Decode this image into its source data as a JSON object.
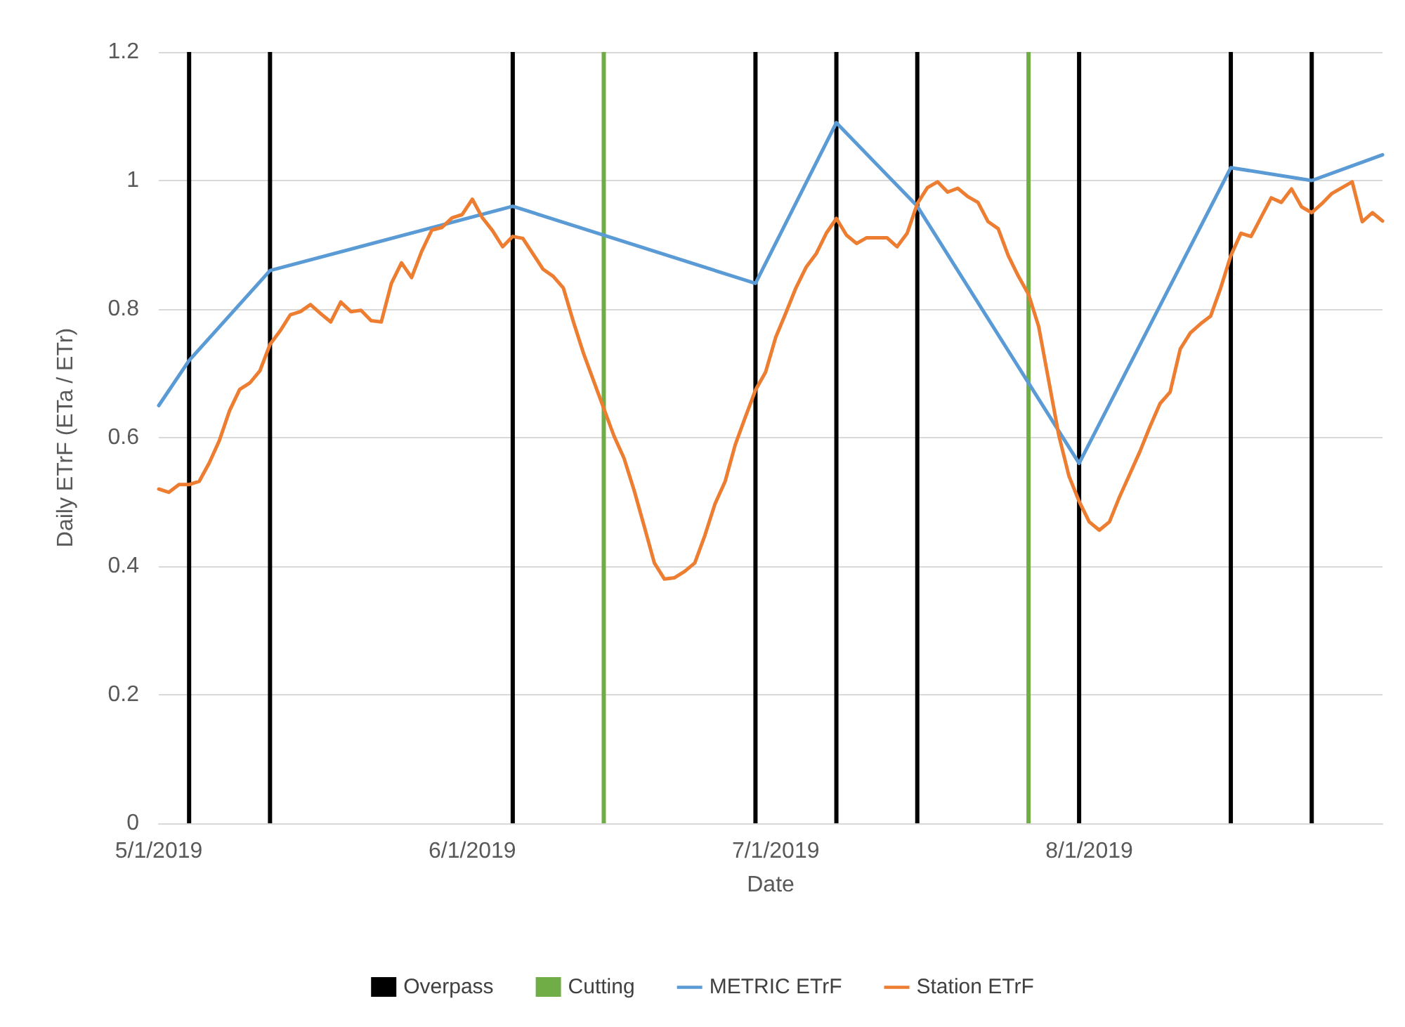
{
  "chart_data": {
    "type": "line",
    "xlabel": "Date",
    "ylabel": "Daily ETrF (ETa / ETr)",
    "xlim": [
      "2019-05-01",
      "2019-08-30"
    ],
    "xticks": [
      {
        "value": "2019-05-01",
        "label": "5/1/2019"
      },
      {
        "value": "2019-06-01",
        "label": "6/1/2019"
      },
      {
        "value": "2019-07-01",
        "label": "7/1/2019"
      },
      {
        "value": "2019-08-01",
        "label": "8/1/2019"
      }
    ],
    "ylim": [
      0,
      1.2
    ],
    "yticks": [
      0,
      0.2,
      0.4,
      0.6,
      0.8,
      1,
      1.2
    ],
    "grid": "y",
    "legend": "bottom",
    "marker": "none",
    "line_style": "solid",
    "series": [
      {
        "name": "Overpass",
        "type": "bar",
        "color": "#000000",
        "x": [
          "2019-05-04",
          "2019-05-12",
          "2019-06-05",
          "2019-06-29",
          "2019-07-07",
          "2019-07-15",
          "2019-07-31",
          "2019-08-15",
          "2019-08-23"
        ],
        "values": [
          1.2,
          1.2,
          1.2,
          1.2,
          1.2,
          1.2,
          1.2,
          1.2,
          1.2
        ]
      },
      {
        "name": "Cutting",
        "type": "bar",
        "color": "#70ad47",
        "x": [
          "2019-06-14",
          "2019-07-26"
        ],
        "values": [
          1.2,
          1.2
        ]
      },
      {
        "name": "METRIC ETrF",
        "color": "#5b9bd5",
        "x": [
          "2019-05-01",
          "2019-05-04",
          "2019-05-12",
          "2019-06-05",
          "2019-06-29",
          "2019-07-07",
          "2019-07-15",
          "2019-07-31",
          "2019-08-15",
          "2019-08-23",
          "2019-08-30"
        ],
        "values": [
          0.65,
          0.72,
          0.86,
          0.96,
          0.84,
          1.09,
          0.96,
          0.56,
          1.02,
          1.0,
          1.04
        ]
      },
      {
        "name": "Station ETrF",
        "color": "#ed7d31",
        "x": [
          "2019-05-01",
          "2019-05-02",
          "2019-05-03",
          "2019-05-04",
          "2019-05-05",
          "2019-05-06",
          "2019-05-07",
          "2019-05-08",
          "2019-05-09",
          "2019-05-10",
          "2019-05-11",
          "2019-05-12",
          "2019-05-13",
          "2019-05-14",
          "2019-05-15",
          "2019-05-16",
          "2019-05-17",
          "2019-05-18",
          "2019-05-19",
          "2019-05-20",
          "2019-05-21",
          "2019-05-22",
          "2019-05-23",
          "2019-05-24",
          "2019-05-25",
          "2019-05-26",
          "2019-05-27",
          "2019-05-28",
          "2019-05-29",
          "2019-05-30",
          "2019-05-31",
          "2019-06-01",
          "2019-06-02",
          "2019-06-03",
          "2019-06-04",
          "2019-06-05",
          "2019-06-06",
          "2019-06-07",
          "2019-06-08",
          "2019-06-09",
          "2019-06-10",
          "2019-06-11",
          "2019-06-12",
          "2019-06-13",
          "2019-06-15",
          "2019-06-16",
          "2019-06-17",
          "2019-06-18",
          "2019-06-19",
          "2019-06-20",
          "2019-06-21",
          "2019-06-22",
          "2019-06-23",
          "2019-06-24",
          "2019-06-25",
          "2019-06-26",
          "2019-06-27",
          "2019-06-28",
          "2019-06-29",
          "2019-06-30",
          "2019-07-01",
          "2019-07-02",
          "2019-07-03",
          "2019-07-04",
          "2019-07-05",
          "2019-07-06",
          "2019-07-07",
          "2019-07-08",
          "2019-07-09",
          "2019-07-10",
          "2019-07-12",
          "2019-07-13",
          "2019-07-14",
          "2019-07-15",
          "2019-07-16",
          "2019-07-17",
          "2019-07-18",
          "2019-07-19",
          "2019-07-20",
          "2019-07-21",
          "2019-07-22",
          "2019-07-23",
          "2019-07-24",
          "2019-07-25",
          "2019-07-26",
          "2019-07-27",
          "2019-07-28",
          "2019-07-29",
          "2019-07-30",
          "2019-07-31",
          "2019-08-01",
          "2019-08-02",
          "2019-08-03",
          "2019-08-04",
          "2019-08-05",
          "2019-08-06",
          "2019-08-07",
          "2019-08-08",
          "2019-08-09",
          "2019-08-10",
          "2019-08-11",
          "2019-08-12",
          "2019-08-13",
          "2019-08-14",
          "2019-08-15",
          "2019-08-16",
          "2019-08-17",
          "2019-08-18",
          "2019-08-19",
          "2019-08-20",
          "2019-08-21",
          "2019-08-22",
          "2019-08-23",
          "2019-08-24",
          "2019-08-25",
          "2019-08-26",
          "2019-08-27",
          "2019-08-28",
          "2019-08-29",
          "2019-08-30"
        ],
        "values": [
          0.52,
          0.515,
          0.527,
          0.527,
          0.532,
          0.561,
          0.596,
          0.642,
          0.675,
          0.685,
          0.704,
          0.745,
          0.766,
          0.791,
          0.796,
          0.807,
          0.793,
          0.78,
          0.811,
          0.796,
          0.798,
          0.782,
          0.78,
          0.84,
          0.872,
          0.849,
          0.89,
          0.923,
          0.927,
          0.942,
          0.947,
          0.971,
          0.942,
          0.922,
          0.897,
          0.913,
          0.91,
          0.886,
          0.862,
          0.851,
          0.833,
          0.78,
          0.731,
          0.688,
          0.603,
          0.568,
          0.518,
          0.462,
          0.405,
          0.38,
          0.382,
          0.392,
          0.405,
          0.448,
          0.497,
          0.532,
          0.589,
          0.632,
          0.674,
          0.702,
          0.756,
          0.794,
          0.833,
          0.865,
          0.886,
          0.918,
          0.941,
          0.915,
          0.902,
          0.911,
          0.911,
          0.897,
          0.918,
          0.964,
          0.989,
          0.998,
          0.982,
          0.988,
          0.975,
          0.966,
          0.936,
          0.925,
          0.883,
          0.851,
          0.823,
          0.773,
          0.688,
          0.603,
          0.54,
          0.501,
          0.469,
          0.456,
          0.469,
          0.508,
          0.543,
          0.578,
          0.617,
          0.653,
          0.671,
          0.738,
          0.763,
          0.777,
          0.789,
          0.833,
          0.883,
          0.918,
          0.913,
          0.943,
          0.973,
          0.966,
          0.987,
          0.959,
          0.95,
          0.964,
          0.98,
          0.989,
          0.998,
          0.936,
          0.95,
          0.937
        ]
      }
    ]
  }
}
